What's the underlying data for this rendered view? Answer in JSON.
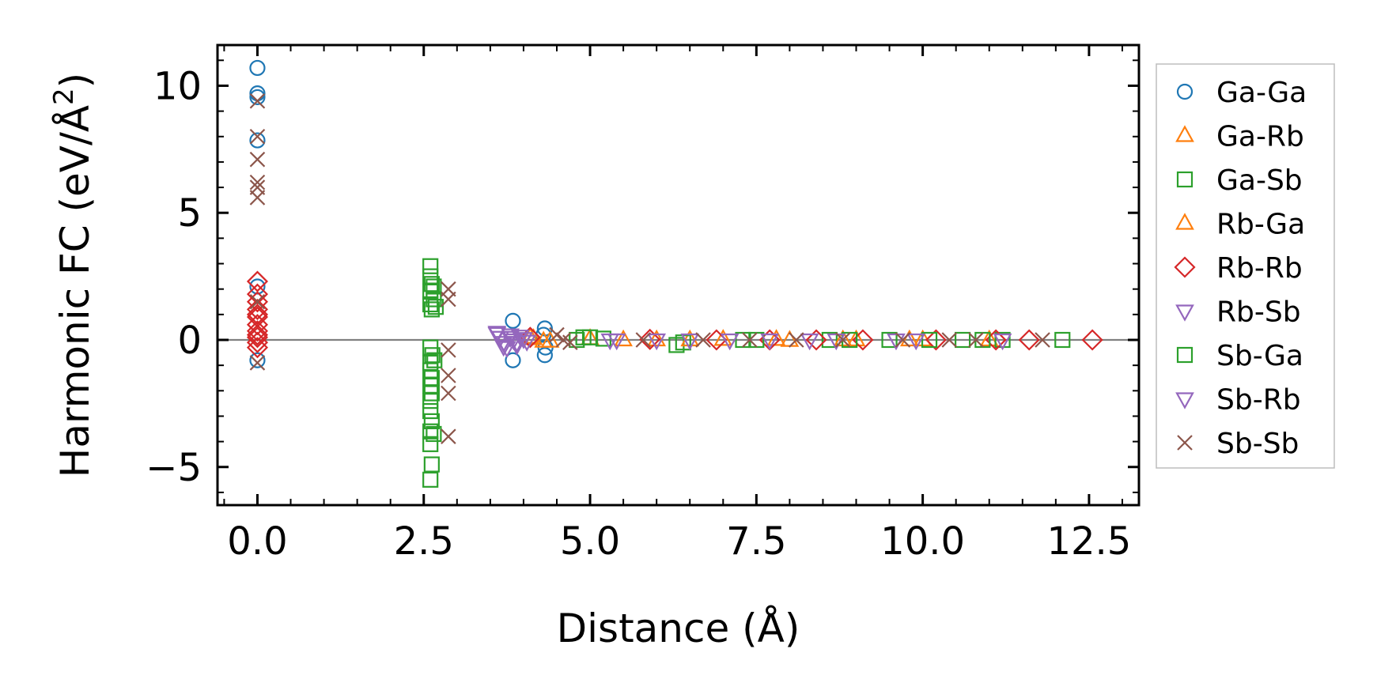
{
  "chart_data": {
    "type": "scatter",
    "xlabel": "Distance (Å)",
    "ylabel_main": "Harmonic FC (eV/Å",
    "ylabel_sup": "2",
    "ylabel_close": ")",
    "xlim": [
      -0.6,
      13.25
    ],
    "ylim": [
      -6.5,
      11.6
    ],
    "xticks": [
      0.0,
      2.5,
      5.0,
      7.5,
      10.0,
      12.5
    ],
    "xtick_labels": [
      "0.0",
      "2.5",
      "5.0",
      "7.5",
      "10.0",
      "12.5"
    ],
    "yticks": [
      -5,
      0,
      5,
      10
    ],
    "ytick_labels": [
      "−5",
      "0",
      "5",
      "10"
    ],
    "zero_line": true,
    "grid": false,
    "legend_position": "right-outside",
    "series": [
      {
        "name": "Ga-Ga",
        "marker": "circle",
        "color": "#1f77b4",
        "x": [
          0,
          0,
          0,
          0,
          0,
          0,
          3.84,
          3.84,
          4.32,
          4.32,
          4.3,
          4.33
        ],
        "y": [
          10.7,
          9.7,
          9.55,
          7.85,
          2.1,
          -0.8,
          0.75,
          -0.8,
          0.45,
          -0.6,
          0.2,
          -0.3
        ]
      },
      {
        "name": "Ga-Rb",
        "marker": "triangle-up",
        "color": "#ff7f0e",
        "x": [
          4.1,
          4.3,
          5.0,
          6.0,
          7.0,
          8.0,
          9.0,
          10.0,
          11.0
        ],
        "y": [
          0.1,
          -0.05,
          0.05,
          0.0,
          0.02,
          -0.02,
          0.0,
          0.0,
          0.0
        ]
      },
      {
        "name": "Ga-Sb",
        "marker": "square",
        "color": "#2ca02c",
        "x": [
          2.6,
          2.6,
          2.62,
          2.6,
          2.65,
          2.6,
          2.62,
          2.6,
          2.63,
          2.6,
          2.6,
          2.62,
          2.6,
          2.62,
          2.6,
          2.6,
          2.62,
          2.6,
          2.65,
          2.6,
          2.62,
          2.6,
          4.9,
          5.2,
          6.3,
          7.3,
          8.6,
          9.5,
          10.6,
          11.2,
          12.1
        ],
        "y": [
          2.9,
          2.5,
          2.2,
          1.9,
          1.6,
          1.4,
          1.2,
          -0.3,
          -0.6,
          -0.9,
          -1.2,
          -1.5,
          -1.8,
          -2.1,
          -2.4,
          -2.8,
          -3.2,
          -3.6,
          -3.7,
          -4.1,
          -4.9,
          -5.5,
          0.1,
          0.05,
          -0.2,
          0.0,
          0.0,
          0.0,
          0.0,
          0.0,
          0.0
        ]
      },
      {
        "name": "Rb-Ga",
        "marker": "triangle-up",
        "color": "#ff7f0e",
        "x": [
          4.15,
          4.4,
          5.5,
          6.5,
          7.8,
          8.8,
          9.8
        ],
        "y": [
          0.05,
          -0.05,
          0.0,
          0.0,
          0.02,
          0.0,
          0.0
        ]
      },
      {
        "name": "Rb-Rb",
        "marker": "diamond",
        "color": "#d62728",
        "x": [
          0,
          0,
          0,
          0,
          0,
          0,
          0,
          0,
          0,
          0,
          0,
          0,
          4.1,
          5.9,
          6.9,
          7.7,
          8.4,
          9.1,
          10.2,
          11.1,
          11.6,
          12.55
        ],
        "y": [
          2.3,
          1.8,
          1.5,
          1.2,
          0.9,
          0.6,
          0.35,
          0.1,
          -0.1,
          -0.3,
          0.2,
          1.0,
          0.1,
          0.02,
          0.0,
          0.0,
          0.0,
          0.0,
          0.0,
          0.0,
          0.0,
          0.0
        ]
      },
      {
        "name": "Rb-Sb",
        "marker": "triangle-down",
        "color": "#9467bd",
        "x": [
          3.6,
          3.65,
          3.7,
          3.75,
          3.8,
          3.85,
          3.9,
          3.95,
          4.0,
          4.05,
          5.3,
          6.0,
          7.1,
          8.3,
          9.6,
          11.2
        ],
        "y": [
          0.3,
          0.1,
          -0.1,
          -0.3,
          0.2,
          0.0,
          -0.2,
          0.15,
          0.05,
          -0.05,
          0.0,
          0.0,
          0.0,
          0.0,
          0.0,
          0.0
        ]
      },
      {
        "name": "Sb-Ga",
        "marker": "square",
        "color": "#2ca02c",
        "x": [
          2.65,
          2.68,
          2.66,
          4.8,
          5.0,
          6.4,
          7.5,
          8.9,
          10.1,
          10.9
        ],
        "y": [
          2.1,
          1.3,
          -0.8,
          0.0,
          0.1,
          -0.1,
          0.0,
          0.0,
          0.0,
          0.0
        ]
      },
      {
        "name": "Sb-Rb",
        "marker": "triangle-down",
        "color": "#9467bd",
        "x": [
          3.6,
          3.7,
          3.8,
          3.9,
          4.0,
          5.4,
          6.5,
          7.7,
          8.7,
          9.9
        ],
        "y": [
          0.25,
          -0.25,
          0.1,
          -0.1,
          0.05,
          0.0,
          0.0,
          0.0,
          0.0,
          0.0
        ]
      },
      {
        "name": "Sb-Sb",
        "marker": "x",
        "color": "#8c564b",
        "x": [
          0,
          0,
          0,
          0,
          0,
          0,
          0,
          0,
          2.87,
          2.87,
          2.87,
          2.87,
          2.87,
          2.87,
          4.5,
          4.6,
          4.7,
          5.8,
          6.7,
          7.4,
          8.1,
          8.8,
          9.7,
          10.4,
          10.8,
          11.8
        ],
        "y": [
          9.4,
          8.0,
          7.1,
          6.2,
          6.0,
          5.6,
          1.5,
          -0.9,
          2.0,
          1.6,
          -0.4,
          -1.4,
          -2.1,
          -3.8,
          0.2,
          0.0,
          -0.1,
          0.0,
          0.0,
          0.0,
          0.0,
          0.0,
          0.0,
          0.0,
          0.0,
          0.0
        ]
      }
    ]
  }
}
